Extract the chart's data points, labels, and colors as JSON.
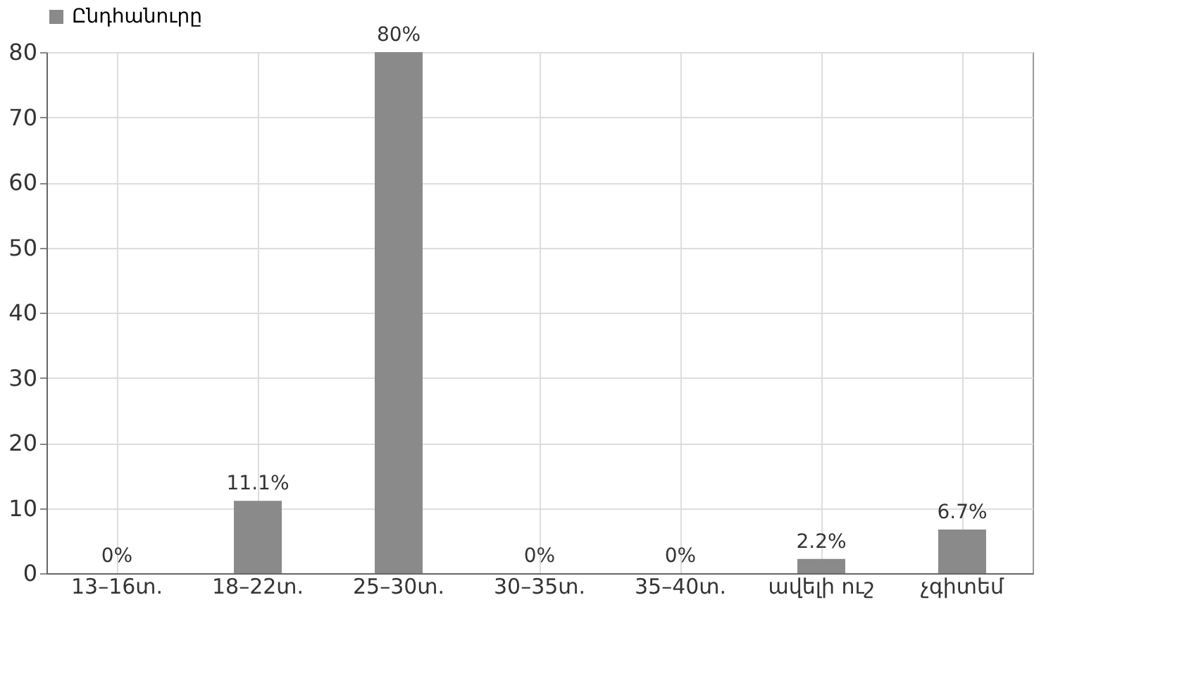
{
  "chart_data": {
    "type": "bar",
    "categories": [
      "13–16տ.",
      "18–22տ.",
      "25–30տ.",
      "30–35տ.",
      "35–40տ.",
      "ավելի ուշ",
      "չգիտեմ"
    ],
    "series": [
      {
        "name": "Ընդհանուրը",
        "color": "#8a8a8a",
        "values": [
          0,
          11.1,
          80,
          0,
          0,
          2.2,
          6.7
        ],
        "value_labels": [
          "0%",
          "11.1%",
          "80%",
          "0%",
          "0%",
          "2.2%",
          "6.7%"
        ]
      }
    ],
    "ylim": [
      0,
      80
    ],
    "yticks": [
      0,
      10,
      20,
      30,
      40,
      50,
      60,
      70,
      80
    ],
    "grid": true,
    "legend": "top"
  }
}
